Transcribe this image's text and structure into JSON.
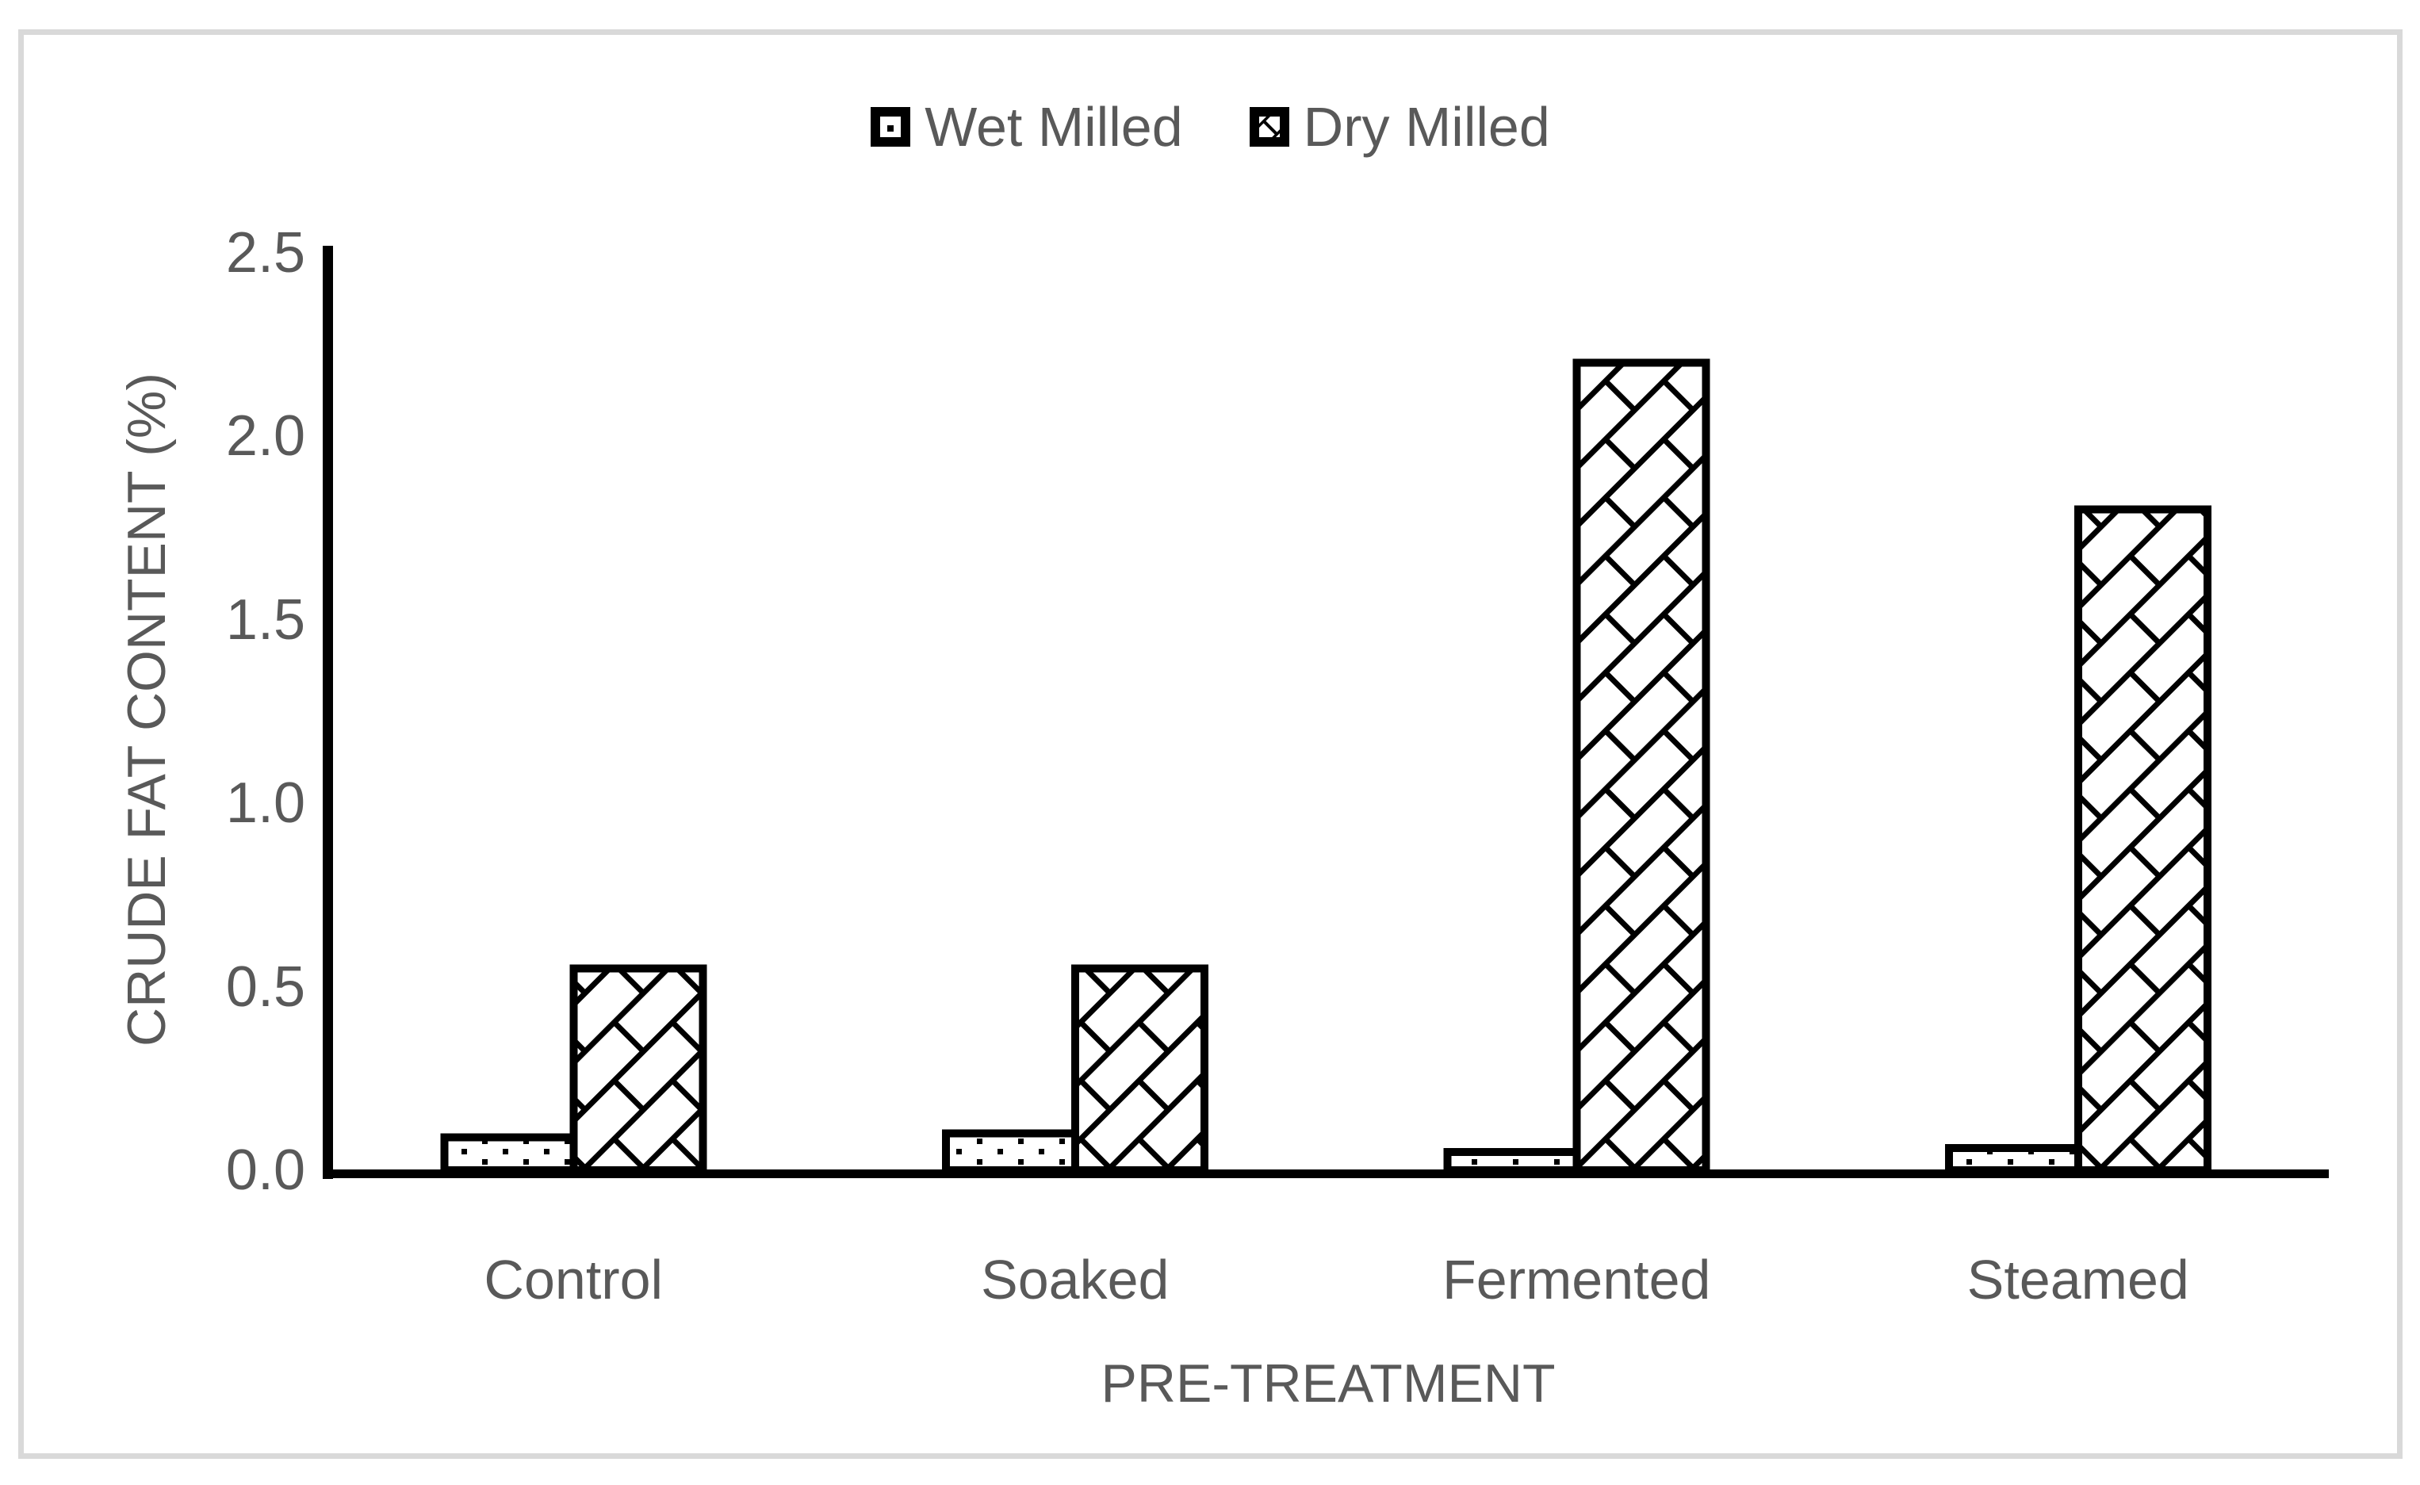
{
  "frame": {
    "border_color": "#d9d9d9",
    "background": "#ffffff"
  },
  "chart_data": {
    "type": "bar",
    "title": "",
    "categories": [
      "Control",
      "Soaked",
      "Fermented",
      "Steamed"
    ],
    "series": [
      {
        "name": "Wet Milled",
        "pattern": "dots",
        "values": [
          0.09,
          0.1,
          0.05,
          0.06
        ]
      },
      {
        "name": "Dry Milled",
        "pattern": "diagonal-brick",
        "values": [
          0.55,
          0.55,
          2.2,
          1.8
        ]
      }
    ],
    "xlabel": "PRE-TREATMENT",
    "ylabel": "CRUDE FAT CONTENT (%)",
    "ylim": [
      0,
      2.5
    ],
    "ytick_labels": [
      "0.0",
      "0.5",
      "1.0",
      "1.5",
      "2.0",
      "2.5"
    ],
    "legend_position": "top-center",
    "grid": false,
    "bar_fill": "#ffffff",
    "bar_border": "#000000",
    "text_color": "#595959",
    "axis_color": "#000000"
  }
}
